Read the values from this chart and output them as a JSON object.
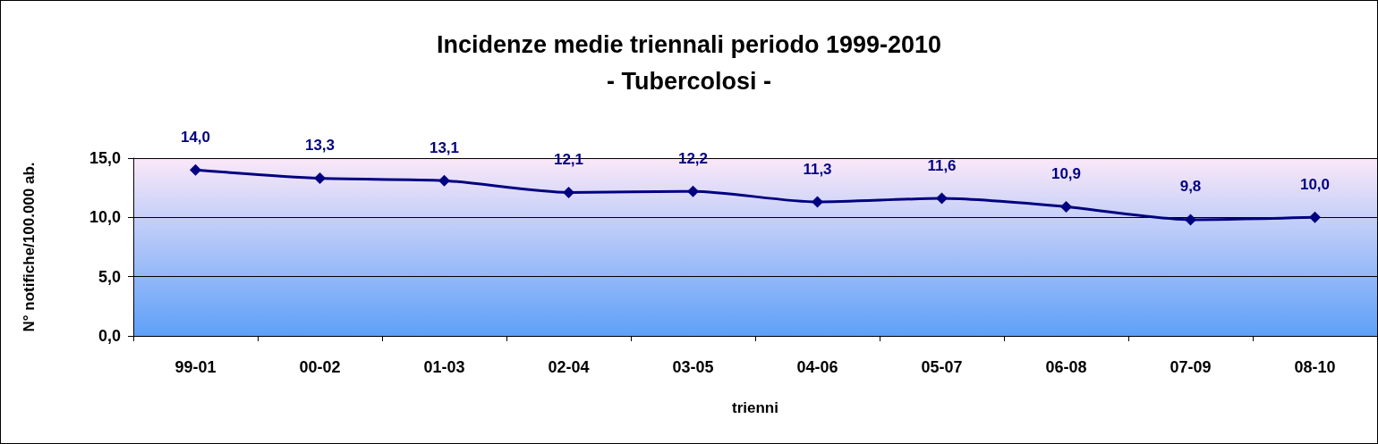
{
  "chart_data": {
    "type": "line",
    "title": "Incidenze medie triennali periodo 1999-2010",
    "subtitle": "- Tubercolosi -",
    "xlabel": "trienni",
    "ylabel": "N° notifiche/100.000 ab.",
    "categories": [
      "99-01",
      "00-02",
      "01-03",
      "02-04",
      "03-05",
      "04-06",
      "05-07",
      "06-08",
      "07-09",
      "08-10"
    ],
    "series": [
      {
        "color": "#000080",
        "values": [
          14.0,
          13.3,
          13.1,
          12.1,
          12.2,
          11.3,
          11.6,
          10.9,
          9.8,
          10.0
        ],
        "value_labels": [
          "14,0",
          "13,3",
          "13,1",
          "12,1",
          "12,2",
          "11,3",
          "11,6",
          "10,9",
          "9,8",
          "10,0"
        ]
      }
    ],
    "ylim": [
      0,
      15
    ],
    "yticks": [
      {
        "value": 0,
        "label": "0,0"
      },
      {
        "value": 5,
        "label": "5,0"
      },
      {
        "value": 10,
        "label": "10,0"
      },
      {
        "value": 15,
        "label": "15,0"
      }
    ],
    "grid": "y",
    "marker": "diamond",
    "line_style": "solid"
  }
}
